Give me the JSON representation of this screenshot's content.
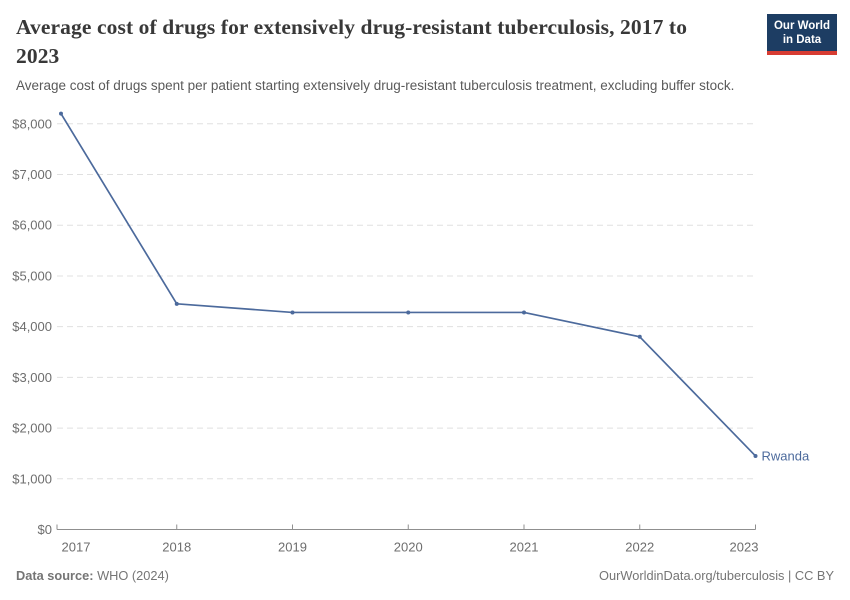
{
  "header": {
    "title": "Average cost of drugs for extensively drug-resistant tuberculosis, 2017 to 2023",
    "subtitle": "Average cost of drugs spent per patient starting extensively drug-resistant tuberculosis treatment, excluding buffer stock.",
    "logo": {
      "line1": "Our World",
      "line2": "in Data"
    }
  },
  "chart_data": {
    "type": "line",
    "title": "Average cost of drugs for extensively drug-resistant tuberculosis, 2017 to 2023",
    "subtitle": "Average cost of drugs spent per patient starting extensively drug-resistant tuberculosis treatment, excluding buffer stock.",
    "x": [
      2017,
      2018,
      2019,
      2020,
      2021,
      2022,
      2023
    ],
    "x_tick_labels": [
      "2017",
      "2018",
      "2019",
      "2020",
      "2021",
      "2022",
      "2023"
    ],
    "series": [
      {
        "name": "Rwanda",
        "values": [
          8200,
          4450,
          4280,
          4280,
          4280,
          3800,
          1450
        ],
        "color": "#4C6A9C"
      }
    ],
    "y_ticks": [
      {
        "value": 0,
        "label": "$0"
      },
      {
        "value": 1000,
        "label": "$1,000"
      },
      {
        "value": 2000,
        "label": "$2,000"
      },
      {
        "value": 3000,
        "label": "$3,000"
      },
      {
        "value": 4000,
        "label": "$4,000"
      },
      {
        "value": 5000,
        "label": "$5,000"
      },
      {
        "value": 6000,
        "label": "$6,000"
      },
      {
        "value": 7000,
        "label": "$7,000"
      },
      {
        "value": 8000,
        "label": "$8,000"
      }
    ],
    "ylim": [
      0,
      8200
    ],
    "xlabel": "",
    "ylabel": "",
    "grid": "horizontal-dashed",
    "legend_position": "end-of-line-label"
  },
  "footer": {
    "source_label": "Data source:",
    "source_value": "WHO (2024)",
    "credit": "OurWorldinData.org/tuberculosis | CC BY"
  },
  "colors": {
    "line": "#4C6A9C",
    "grid": "#e0e0e0",
    "axis": "#8f8f8f",
    "tick_text": "#6e6e6e",
    "title_text": "#383838",
    "subtitle_text": "#5a5a5a",
    "footer_text": "#757575",
    "logo_bg": "#1d3d63",
    "logo_accent": "#d73c32"
  }
}
